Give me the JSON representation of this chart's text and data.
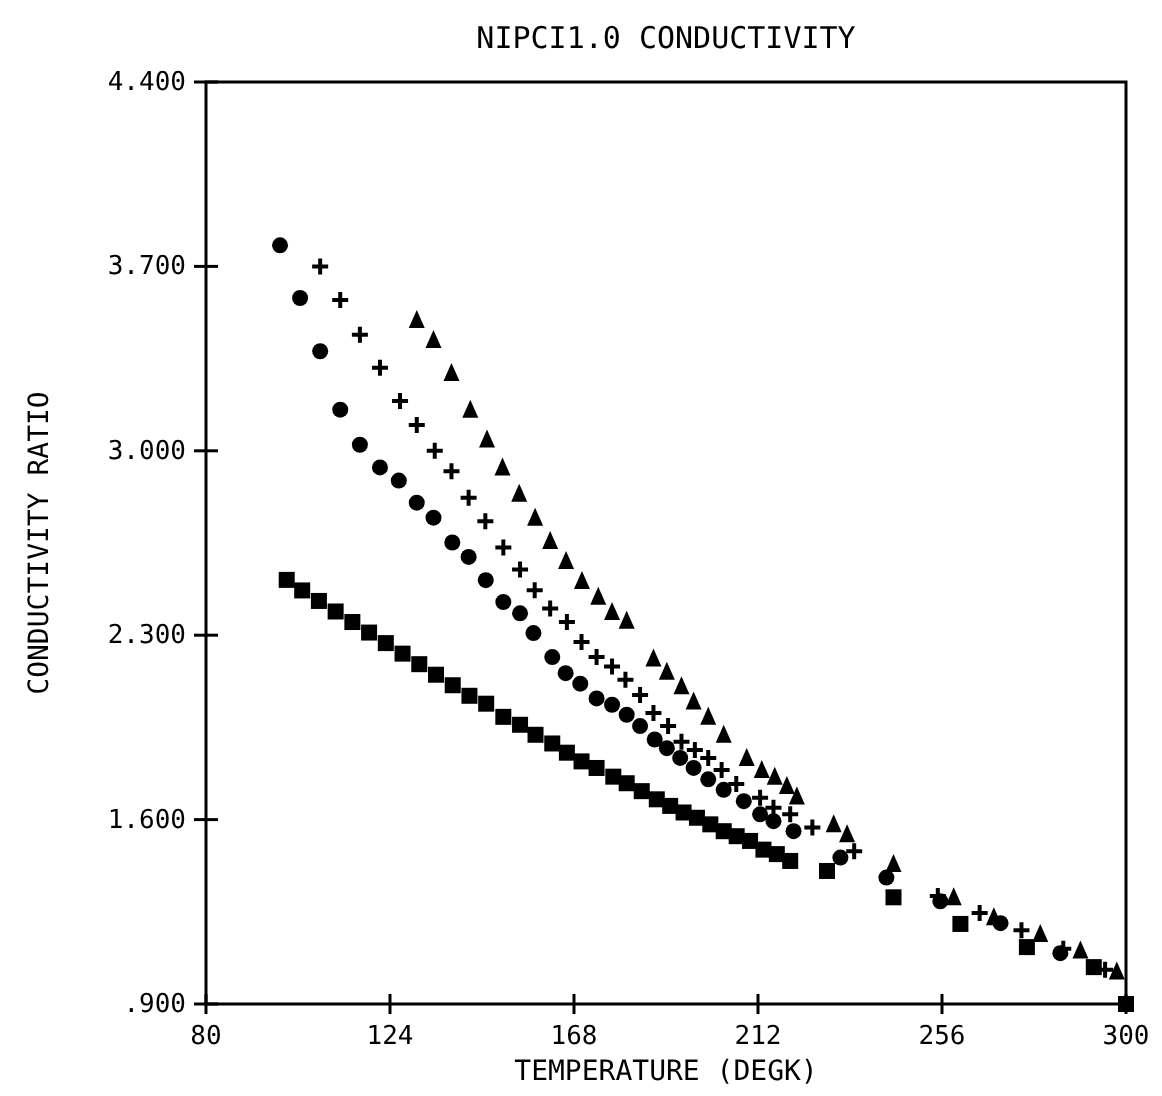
{
  "chart_data": {
    "type": "scatter",
    "title": "NIPCI1.0 CONDUCTIVITY",
    "xlabel": "TEMPERATURE (DEGK)",
    "ylabel": "CONDUCTIVITY RATIO",
    "xlim": [
      80,
      300
    ],
    "xticks": [
      80,
      124,
      168,
      212,
      256,
      300
    ],
    "ylim": [
      0.9,
      4.4
    ],
    "yticks": [
      {
        "value": 0.9,
        "label": ".900"
      },
      {
        "value": 1.6,
        "label": "1.600"
      },
      {
        "value": 2.3,
        "label": "2.300"
      },
      {
        "value": 3.0,
        "label": "3.000"
      },
      {
        "value": 3.7,
        "label": "3.700"
      },
      {
        "value": 4.4,
        "label": "4.400"
      }
    ],
    "grid": false,
    "series": [
      {
        "color": "#000000",
        "marker": "square",
        "x": [
          99.3,
          103,
          107,
          111,
          115,
          119,
          123,
          127,
          131,
          135,
          139,
          143,
          147,
          151.1,
          155.1,
          158.8,
          162.8,
          166.3,
          169.8,
          173.4,
          177.4,
          180.6,
          184.2,
          187.8,
          191,
          194.2,
          197.4,
          200.6,
          203.8,
          206.9,
          210.1,
          213.3,
          216.5,
          219.7,
          228.5,
          244.4,
          260.4,
          276.3,
          292.3,
          300
        ],
        "values": [
          2.51,
          2.47,
          2.43,
          2.39,
          2.35,
          2.31,
          2.27,
          2.23,
          2.19,
          2.15,
          2.11,
          2.07,
          2.04,
          1.99,
          1.96,
          1.922,
          1.889,
          1.854,
          1.821,
          1.796,
          1.763,
          1.738,
          1.708,
          1.677,
          1.652,
          1.627,
          1.607,
          1.582,
          1.556,
          1.537,
          1.519,
          1.486,
          1.469,
          1.443,
          1.405,
          1.305,
          1.204,
          1.116,
          1.04,
          0.9
        ]
      },
      {
        "color": "#000000",
        "marker": "circle",
        "x": [
          97.7,
          102.5,
          107.3,
          112.1,
          116.8,
          121.6,
          126.1,
          130.4,
          134.4,
          138.9,
          142.8,
          146.9,
          151.1,
          155.1,
          158.3,
          162.8,
          166,
          169.5,
          173.4,
          177.1,
          180.6,
          183.8,
          187.3,
          190.2,
          193.4,
          196.6,
          200.1,
          203.8,
          208.6,
          212.5,
          215.7,
          220.5,
          231.7,
          242.7,
          255.6,
          270,
          284.3
        ],
        "values": [
          3.78,
          3.58,
          3.378,
          3.156,
          3.023,
          2.937,
          2.887,
          2.803,
          2.746,
          2.652,
          2.597,
          2.509,
          2.426,
          2.383,
          2.308,
          2.217,
          2.156,
          2.116,
          2.06,
          2.036,
          1.998,
          1.955,
          1.904,
          1.871,
          1.834,
          1.796,
          1.753,
          1.713,
          1.67,
          1.62,
          1.594,
          1.556,
          1.456,
          1.38,
          1.29,
          1.207,
          1.093
        ]
      },
      {
        "color": "#000000",
        "marker": "cross",
        "x": [
          107.3,
          112.1,
          116.8,
          121.6,
          126.4,
          130.4,
          134.7,
          138.7,
          142.8,
          146.8,
          151.1,
          155.1,
          158.6,
          162.3,
          166.3,
          169.8,
          173.4,
          177.1,
          180.3,
          183.8,
          187,
          190.5,
          193.7,
          196.9,
          200.1,
          203.3,
          206.8,
          212.5,
          215.7,
          219.7,
          225,
          235,
          255,
          265,
          275,
          285,
          295
        ],
        "values": [
          3.7,
          3.572,
          3.441,
          3.315,
          3.189,
          3.098,
          3.0,
          2.922,
          2.822,
          2.733,
          2.633,
          2.549,
          2.471,
          2.401,
          2.35,
          2.274,
          2.217,
          2.181,
          2.131,
          2.073,
          2.005,
          1.955,
          1.896,
          1.864,
          1.834,
          1.788,
          1.735,
          1.683,
          1.645,
          1.62,
          1.57,
          1.48,
          1.31,
          1.245,
          1.18,
          1.11,
          1.03
        ]
      },
      {
        "color": "#000000",
        "marker": "triangle",
        "x": [
          130.4,
          134.4,
          138.7,
          143.2,
          147.2,
          150.9,
          154.9,
          158.7,
          162.3,
          166.1,
          169.9,
          173.8,
          177.1,
          180.6,
          187,
          190.2,
          193.7,
          196.6,
          200.1,
          203.8,
          209.3,
          212.9,
          216,
          218.9,
          221.3,
          230.1,
          233.3,
          244.4,
          258.8,
          268.4,
          279.5,
          289.1,
          297.8
        ],
        "values": [
          3.497,
          3.421,
          3.295,
          3.156,
          3.043,
          2.937,
          2.837,
          2.746,
          2.658,
          2.582,
          2.506,
          2.446,
          2.388,
          2.355,
          2.212,
          2.161,
          2.106,
          2.048,
          1.99,
          1.922,
          1.834,
          1.788,
          1.763,
          1.728,
          1.688,
          1.582,
          1.544,
          1.431,
          1.305,
          1.229,
          1.166,
          1.103,
          1.023
        ]
      }
    ]
  }
}
